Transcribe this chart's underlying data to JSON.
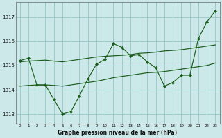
{
  "title": "Graphe pression niveau de la mer (hPa)",
  "bg_color": "#cce8e8",
  "grid_color": "#99cccc",
  "line_color": "#1a5c1a",
  "y_ticks": [
    1013,
    1014,
    1015,
    1016,
    1017
  ],
  "ylim": [
    1012.6,
    1017.6
  ],
  "xlim": [
    -0.5,
    23.5
  ],
  "line1_y": [
    1015.2,
    1015.3,
    1014.2,
    1014.2,
    1013.6,
    1013.0,
    1013.1,
    1013.75,
    1014.45,
    1015.05,
    1015.25,
    1015.9,
    1015.75,
    1015.4,
    1015.45,
    1015.15,
    1014.9,
    1014.15,
    1014.3,
    1014.6,
    1014.6,
    1016.1,
    1016.8,
    1017.25
  ],
  "line2_y": [
    1015.15,
    1015.18,
    1015.2,
    1015.22,
    1015.18,
    1015.15,
    1015.2,
    1015.25,
    1015.3,
    1015.35,
    1015.38,
    1015.4,
    1015.42,
    1015.45,
    1015.5,
    1015.52,
    1015.55,
    1015.6,
    1015.62,
    1015.65,
    1015.7,
    1015.75,
    1015.8,
    1015.85
  ],
  "line3_y": [
    1014.15,
    1014.18,
    1014.2,
    1014.2,
    1014.18,
    1014.15,
    1014.2,
    1014.25,
    1014.3,
    1014.35,
    1014.42,
    1014.5,
    1014.55,
    1014.6,
    1014.65,
    1014.7,
    1014.72,
    1014.75,
    1014.8,
    1014.85,
    1014.9,
    1014.95,
    1015.0,
    1015.1
  ]
}
